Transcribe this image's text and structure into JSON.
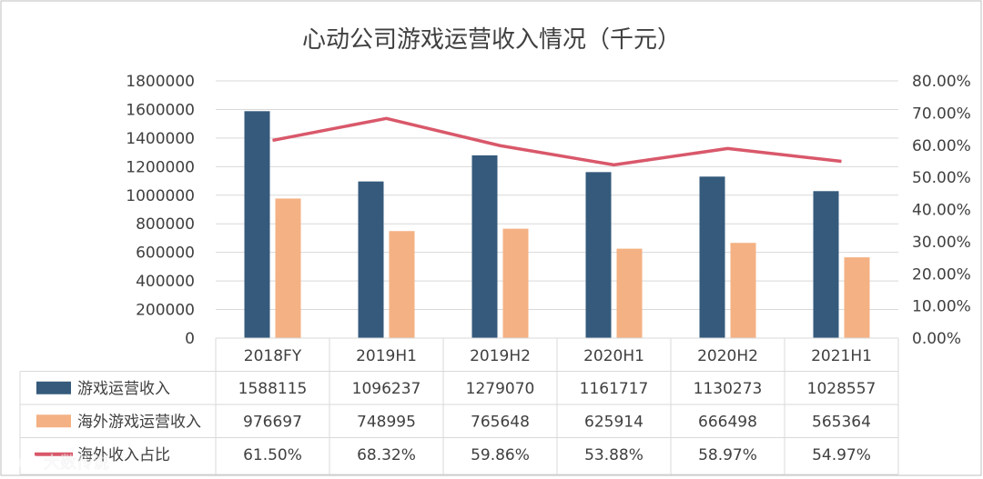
{
  "chart_data": {
    "type": "bar",
    "title": "心动公司游戏运营收入情况（千元）",
    "categories": [
      "2018FY",
      "2019H1",
      "2019H2",
      "2020H1",
      "2020H2",
      "2021H1"
    ],
    "series": [
      {
        "name": "游戏运营收入",
        "kind": "bar",
        "axis": "left",
        "color": "#355a7c",
        "values": [
          1588115,
          1096237,
          1279070,
          1161717,
          1130273,
          1028557
        ],
        "labels": [
          "1588115",
          "1096237",
          "1279070",
          "1161717",
          "1130273",
          "1028557"
        ]
      },
      {
        "name": "海外游戏运营收入",
        "kind": "bar",
        "axis": "left",
        "color": "#f4b183",
        "values": [
          976697,
          748995,
          765648,
          625914,
          666498,
          565364
        ],
        "labels": [
          "976697",
          "748995",
          "765648",
          "625914",
          "666498",
          "565364"
        ]
      },
      {
        "name": "海外收入占比",
        "kind": "line",
        "axis": "right",
        "color": "#d9586a",
        "values": [
          61.5,
          68.32,
          59.86,
          53.88,
          58.97,
          54.97
        ],
        "labels": [
          "61.50%",
          "68.32%",
          "59.86%",
          "53.88%",
          "58.97%",
          "54.97%"
        ]
      }
    ],
    "y_left": {
      "range": [
        0,
        1800000
      ],
      "ticks": [
        "0",
        "200000",
        "400000",
        "600000",
        "800000",
        "1000000",
        "1200000",
        "1400000",
        "1600000",
        "1800000"
      ]
    },
    "y_right": {
      "range": [
        0,
        80
      ],
      "ticks": [
        "0.00%",
        "10.00%",
        "20.00%",
        "30.00%",
        "40.00%",
        "50.00%",
        "60.00%",
        "70.00%",
        "80.00%"
      ]
    },
    "grid": true,
    "legend": "data-table"
  },
  "watermark": "大数传说"
}
